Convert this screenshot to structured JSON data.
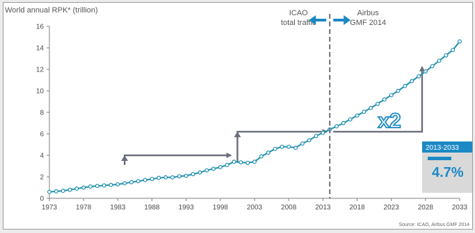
{
  "chart_data": {
    "type": "line",
    "ylabel": "World annual RPK* (trillion)",
    "source": "Source: ICAO, Airbus GMF 2014",
    "ylim": [
      0,
      16
    ],
    "xlim": [
      1973,
      2033
    ],
    "yticks": [
      "0",
      "2",
      "4",
      "6",
      "8",
      "10",
      "12",
      "14",
      "16"
    ],
    "xticks": [
      "1973",
      "1978",
      "1983",
      "1988",
      "1993",
      "1998",
      "2003",
      "2008",
      "2013",
      "2018",
      "2023",
      "2028",
      "2033"
    ],
    "grid": false,
    "divider_year": 2014,
    "left_annotation": [
      "ICAO",
      "total traffic"
    ],
    "right_annotation": [
      "Airbus",
      "GMF 2014"
    ],
    "doubling_label": "x2",
    "growth_box": {
      "period": "2013-2033",
      "rate": "4.7%"
    },
    "series": [
      {
        "x": [
          1973,
          1974,
          1975,
          1976,
          1977,
          1978,
          1979,
          1980,
          1981,
          1982,
          1983,
          1984,
          1985,
          1986,
          1987,
          1988,
          1989,
          1990,
          1991,
          1992,
          1993,
          1994,
          1995,
          1996,
          1997,
          1998,
          1999,
          2000,
          2001,
          2002,
          2003,
          2004,
          2005,
          2006,
          2007,
          2008,
          2009,
          2010,
          2011,
          2012,
          2013,
          2014,
          2015,
          2016,
          2017,
          2018,
          2019,
          2020,
          2021,
          2022,
          2023,
          2024,
          2025,
          2026,
          2027,
          2028,
          2029,
          2030,
          2031,
          2032,
          2033
        ],
        "y": [
          0.6,
          0.65,
          0.7,
          0.8,
          0.9,
          1.0,
          1.1,
          1.15,
          1.2,
          1.25,
          1.3,
          1.4,
          1.5,
          1.6,
          1.7,
          1.8,
          1.9,
          1.95,
          1.95,
          2.05,
          2.1,
          2.25,
          2.4,
          2.6,
          2.75,
          2.9,
          3.1,
          3.4,
          3.35,
          3.3,
          3.4,
          3.9,
          4.25,
          4.6,
          4.8,
          4.8,
          4.7,
          5.1,
          5.4,
          5.8,
          6.1,
          6.4,
          6.7,
          7.0,
          7.35,
          7.7,
          8.05,
          8.4,
          8.8,
          9.2,
          9.6,
          10.0,
          10.45,
          10.9,
          11.35,
          11.8,
          12.3,
          12.8,
          13.3,
          13.8,
          14.6
        ]
      }
    ],
    "step_arrows": [
      {
        "start": [
          1984,
          3.1
        ],
        "corner": [
          1984,
          4.0
        ],
        "end": [
          1999.5,
          4.0
        ],
        "tip": [
          1999.5,
          3.3
        ]
      },
      {
        "start": [
          2000.5,
          3.4
        ],
        "corner": [
          2000.5,
          6.2
        ],
        "end": [
          2013.5,
          6.2
        ]
      },
      {
        "start": [
          2014.5,
          6.2
        ],
        "corner": [
          2027.5,
          6.2
        ],
        "end": [
          2027.5,
          12.2
        ]
      }
    ],
    "colors": {
      "series": "#1e8fb0",
      "arrow": "#6a6e7c",
      "divider": "#6a6e7c",
      "accent": "#1d89c4",
      "growth_box_bg": "#d9d9d9",
      "growth_box_header": "#1d89c4"
    }
  }
}
